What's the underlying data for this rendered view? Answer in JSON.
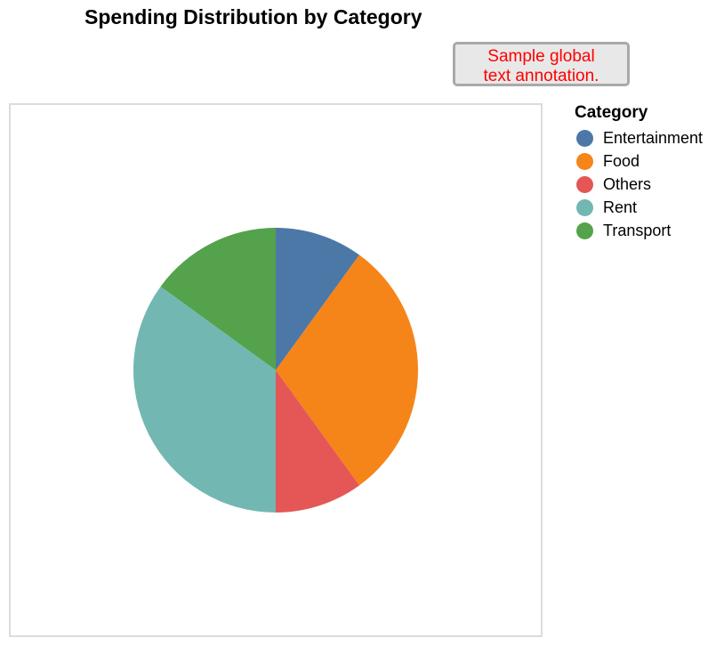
{
  "chart_data": {
    "type": "pie",
    "title": "Spending Distribution by Category",
    "annotation": [
      "Sample global",
      "text annotation."
    ],
    "legend": {
      "title": "Category",
      "placement": "right"
    },
    "categories": [
      "Entertainment",
      "Food",
      "Others",
      "Rent",
      "Transport"
    ],
    "values": [
      10,
      30,
      10,
      35,
      15
    ],
    "colors": [
      "#4c78a8",
      "#f58518",
      "#e45756",
      "#72b7b2",
      "#54a24b"
    ],
    "grid": false
  }
}
